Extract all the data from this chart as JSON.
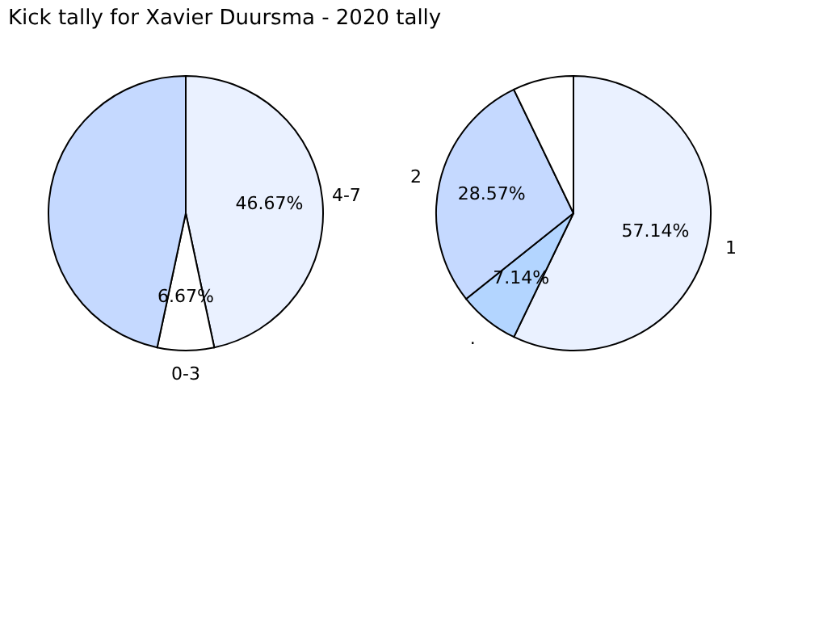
{
  "chart_data": [
    {
      "type": "pie",
      "title": "Kick tally for Xavier Duursma - 2020 tally",
      "categories": [
        "4-7",
        "0-3",
        null
      ],
      "values": [
        46.67,
        6.67,
        46.66
      ],
      "value_labels": [
        "46.67%",
        "6.67%",
        null
      ],
      "colors": [
        "#eaf1ff",
        "#ffffff",
        "#c5d9ff"
      ]
    },
    {
      "type": "pie",
      "categories": [
        "1",
        ".",
        "2",
        null
      ],
      "values": [
        57.14,
        7.14,
        28.57,
        7.15
      ],
      "value_labels": [
        "57.14%",
        "7.14%",
        "28.57%",
        null
      ],
      "colors": [
        "#eaf1ff",
        "#b3d5ff",
        "#c5d9ff",
        "#ffffff"
      ]
    }
  ]
}
